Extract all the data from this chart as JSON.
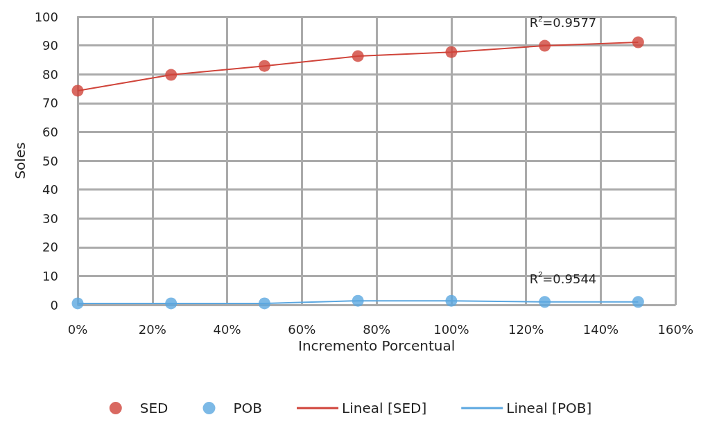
{
  "chart_data": {
    "type": "scatter",
    "xlabel": "Incremento Porcentual",
    "ylabel": "Soles",
    "x": [
      0,
      25,
      50,
      75,
      100,
      125,
      150
    ],
    "series": [
      {
        "name": "SED",
        "color": "#d0443a",
        "values": [
          74.3,
          79.8,
          82.9,
          86.3,
          87.7,
          89.9,
          91.1
        ],
        "marker": "circle"
      },
      {
        "name": "POB",
        "color": "#5ba7e0",
        "values": [
          0.5,
          0.5,
          0.5,
          1.4,
          1.4,
          1.0,
          1.0
        ],
        "marker": "circle"
      },
      {
        "name": "Lineal [SED]",
        "type": "line",
        "color": "#d0443a",
        "x": [
          0,
          25,
          50,
          75,
          100,
          125,
          150
        ],
        "values": [
          74.3,
          79.8,
          82.9,
          86.3,
          87.7,
          89.9,
          91.1
        ],
        "marker": "none",
        "line_style": "solid"
      },
      {
        "name": "Lineal [POB]",
        "type": "line",
        "color": "#5ba7e0",
        "x": [
          0,
          25,
          50,
          75,
          100,
          125,
          150
        ],
        "values": [
          0.5,
          0.5,
          0.5,
          1.4,
          1.4,
          1.0,
          1.0
        ],
        "marker": "none",
        "line_style": "solid"
      }
    ],
    "xlim": [
      0,
      160
    ],
    "xticks": [
      {
        "value": 0,
        "label": "0%"
      },
      {
        "value": 20,
        "label": "20%"
      },
      {
        "value": 40,
        "label": "40%"
      },
      {
        "value": 60,
        "label": "60%"
      },
      {
        "value": 80,
        "label": "80%"
      },
      {
        "value": 100,
        "label": "100%"
      },
      {
        "value": 120,
        "label": "120%"
      },
      {
        "value": 140,
        "label": "140%"
      },
      {
        "value": 160,
        "label": "160%"
      }
    ],
    "ylim": [
      0,
      100
    ],
    "yticks": [
      0,
      10,
      20,
      30,
      40,
      50,
      60,
      70,
      80,
      90,
      100
    ],
    "grid": true,
    "legend": "bottom",
    "annotations": [
      "R$^{2}$=0.9577",
      "R$^{2}$=0.9544"
    ]
  }
}
